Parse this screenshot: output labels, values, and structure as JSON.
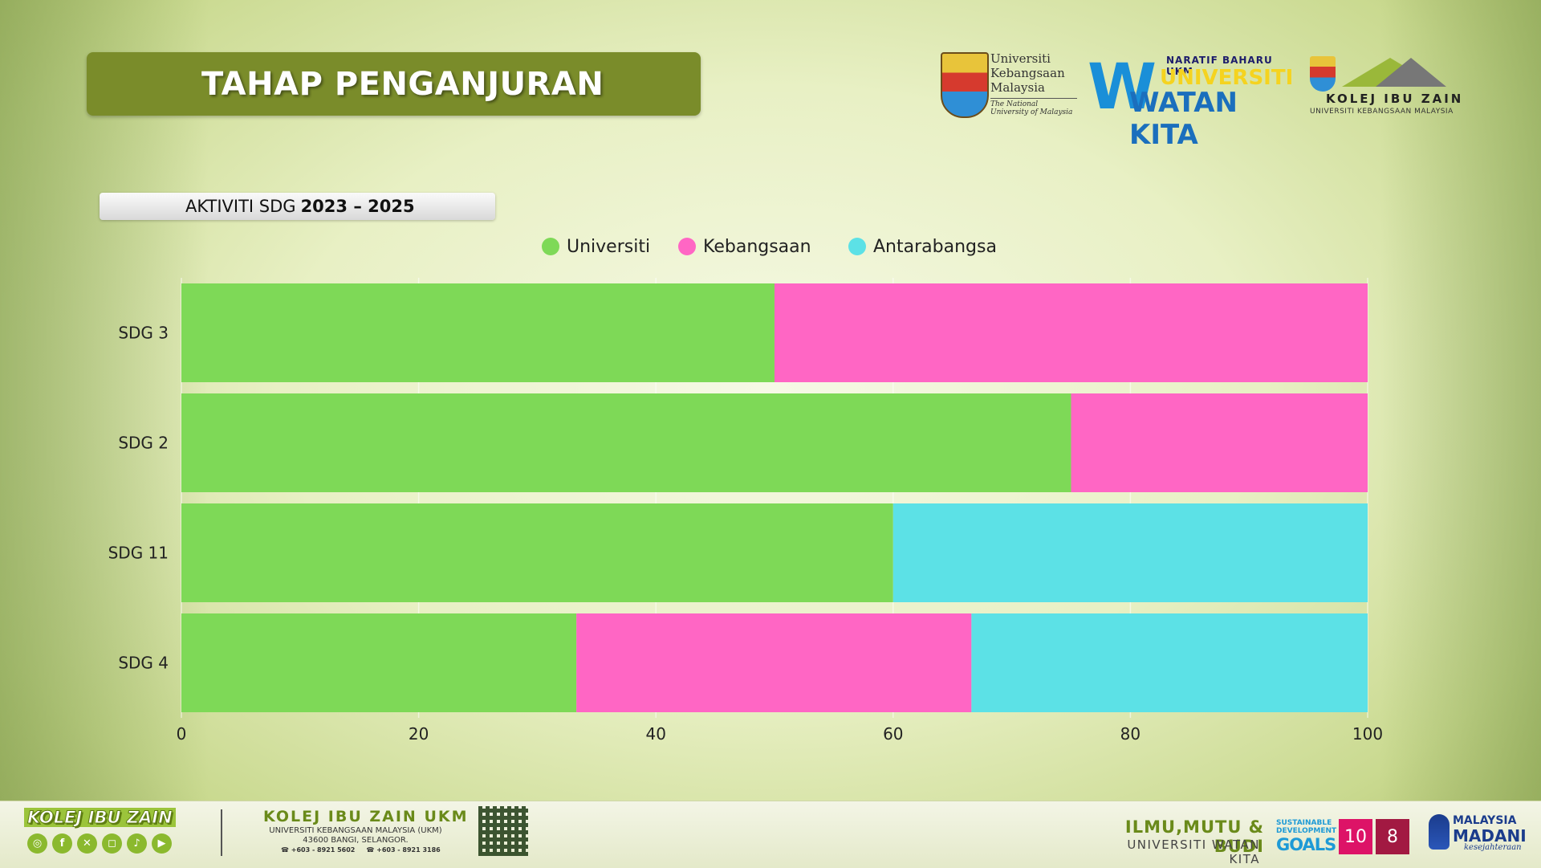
{
  "header": {
    "title": "TAHAP PENGANJURAN"
  },
  "logos": {
    "ukm_line1": "Universiti",
    "ukm_line2": "Kebangsaan",
    "ukm_line3": "Malaysia",
    "ukm_tagline": "The National University of Malaysia",
    "uwk_top": "NARATIF BAHARU UKM",
    "uwk_line1": "UNIVERSITI",
    "uwk_line2": "WATAN KITA",
    "kiz_name": "KOLEJ IBU ZAIN",
    "kiz_sub": "UNIVERSITI KEBANGSAAN MALAYSIA"
  },
  "subtitle": {
    "prefix": "AKTIVITI SDG",
    "years": "2023 – 2025"
  },
  "chart_data": {
    "type": "bar",
    "orientation": "horizontal",
    "stacked": true,
    "categories": [
      "SDG 3",
      "SDG 2",
      "SDG 11",
      "SDG 4"
    ],
    "series": [
      {
        "name": "Universiti",
        "color": "#7ed957",
        "values": [
          50,
          75,
          60,
          33.3
        ]
      },
      {
        "name": "Kebangsaan",
        "color": "#ff66c4",
        "values": [
          50,
          25,
          0,
          33.3
        ]
      },
      {
        "name": "Antarabangsa",
        "color": "#5ce1e6",
        "values": [
          0,
          0,
          40,
          33.4
        ]
      }
    ],
    "xlim": [
      0,
      100
    ],
    "xticks": [
      0,
      20,
      40,
      60,
      80,
      100
    ],
    "legend_position": "top-center",
    "grid": true
  },
  "footer": {
    "brand": "KOLEJ IBU ZAIN",
    "college": "KOLEJ IBU ZAIN UKM",
    "address_line1": "UNIVERSITI KEBANGSAAN MALAYSIA (UKM)",
    "address_line2": "43600 BANGI, SELANGOR.",
    "phone1": "+603 - 8921 5602",
    "phone2": "+603 - 8921 3186",
    "motto": "ILMU,MUTU & BUDI",
    "motto_sub": "UNIVERSITI WATAN KITA",
    "sdg_line1": "SUSTAINABLE",
    "sdg_line2": "DEVELOPMENT",
    "sdg_goals": "GOALS",
    "sdg_badge1": "10",
    "sdg_badge2": "8",
    "madani_line1": "MALAYSIA",
    "madani_line2": "MADANI",
    "madani_line3": "kesejahteraan"
  }
}
